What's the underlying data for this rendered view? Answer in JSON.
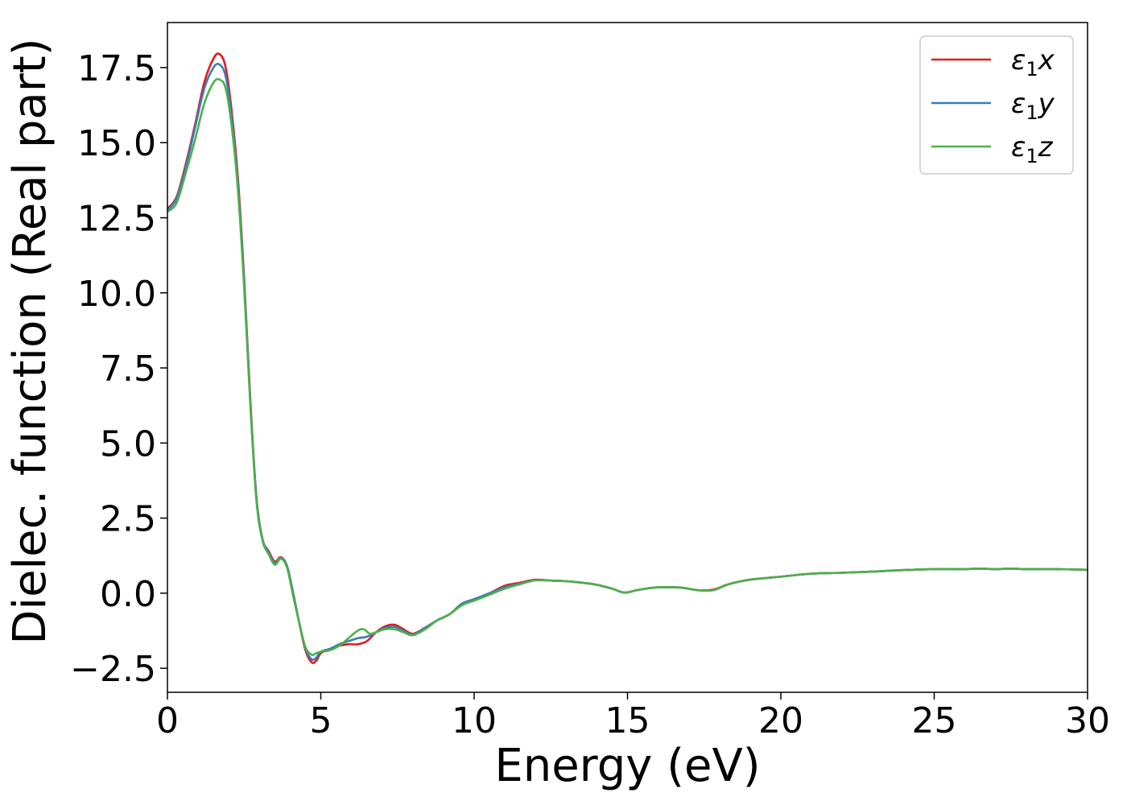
{
  "chart_data": {
    "type": "line",
    "title": "",
    "xlabel": "Energy (eV)",
    "ylabel": "Dielec. function (Real part)",
    "xlim": [
      0,
      30
    ],
    "ylim": [
      -3.3,
      19.0
    ],
    "xticks": [
      0,
      5,
      10,
      15,
      20,
      25,
      30
    ],
    "xtick_labels": [
      "0",
      "5",
      "10",
      "15",
      "20",
      "25",
      "30"
    ],
    "yticks": [
      -2.5,
      0.0,
      2.5,
      5.0,
      7.5,
      10.0,
      12.5,
      15.0,
      17.5
    ],
    "ytick_labels": [
      "−2.5",
      "0.0",
      "2.5",
      "5.0",
      "7.5",
      "10.0",
      "12.5",
      "15.0",
      "17.5"
    ],
    "grid": false,
    "legend_position": "top-right",
    "series": [
      {
        "name": "ε₁x",
        "legend_sub": "1",
        "legend_base": "ε",
        "legend_var": "x",
        "color": "#e41a1c",
        "x": [
          0,
          0.3,
          0.6,
          0.9,
          1.2,
          1.5,
          1.7,
          1.9,
          2.1,
          2.3,
          2.5,
          2.7,
          2.9,
          3.1,
          3.3,
          3.5,
          3.7,
          3.9,
          4.1,
          4.3,
          4.5,
          4.7,
          4.85,
          5.0,
          5.3,
          5.6,
          5.9,
          6.2,
          6.5,
          6.8,
          7.1,
          7.4,
          7.7,
          8.0,
          8.4,
          8.8,
          9.2,
          9.6,
          10.0,
          10.5,
          11.0,
          11.5,
          12.0,
          12.5,
          13.0,
          13.5,
          14.0,
          14.5,
          14.9,
          15.3,
          15.8,
          16.3,
          16.8,
          17.3,
          17.8,
          18.3,
          19.0,
          20.0,
          21.0,
          22.0,
          23.0,
          24.0,
          25.0,
          26.0,
          26.5,
          27.0,
          27.5,
          28.0,
          29.0,
          30.0
        ],
        "y": [
          12.8,
          13.2,
          14.3,
          15.6,
          17.0,
          17.8,
          17.95,
          17.5,
          16.0,
          13.8,
          10.5,
          6.5,
          3.2,
          1.8,
          1.4,
          1.05,
          1.2,
          0.9,
          0.0,
          -1.0,
          -1.9,
          -2.3,
          -2.25,
          -2.0,
          -1.85,
          -1.75,
          -1.7,
          -1.7,
          -1.6,
          -1.3,
          -1.1,
          -1.05,
          -1.2,
          -1.35,
          -1.15,
          -0.9,
          -0.7,
          -0.35,
          -0.2,
          0.0,
          0.25,
          0.35,
          0.45,
          0.42,
          0.4,
          0.35,
          0.28,
          0.15,
          0.02,
          0.1,
          0.18,
          0.2,
          0.18,
          0.1,
          0.12,
          0.3,
          0.45,
          0.55,
          0.65,
          0.68,
          0.72,
          0.77,
          0.8,
          0.8,
          0.82,
          0.8,
          0.82,
          0.8,
          0.8,
          0.78
        ]
      },
      {
        "name": "ε₁y",
        "legend_sub": "1",
        "legend_base": "ε",
        "legend_var": "y",
        "color": "#377eb8",
        "x": [
          0,
          0.3,
          0.6,
          0.9,
          1.2,
          1.5,
          1.7,
          1.9,
          2.1,
          2.3,
          2.5,
          2.7,
          2.9,
          3.1,
          3.3,
          3.5,
          3.7,
          3.9,
          4.1,
          4.3,
          4.5,
          4.7,
          4.85,
          5.0,
          5.3,
          5.6,
          5.9,
          6.2,
          6.5,
          6.8,
          7.1,
          7.4,
          7.7,
          8.0,
          8.4,
          8.8,
          9.2,
          9.6,
          10.0,
          10.5,
          11.0,
          11.5,
          12.0,
          12.5,
          13.0,
          13.5,
          14.0,
          14.5,
          14.9,
          15.3,
          15.8,
          16.3,
          16.8,
          17.3,
          17.8,
          18.3,
          19.0,
          20.0,
          21.0,
          22.0,
          23.0,
          24.0,
          25.0,
          26.0,
          26.5,
          27.0,
          27.5,
          28.0,
          29.0,
          30.0
        ],
        "y": [
          12.75,
          13.15,
          14.2,
          15.5,
          16.8,
          17.5,
          17.6,
          17.2,
          15.8,
          13.6,
          10.4,
          6.4,
          3.2,
          1.8,
          1.35,
          1.0,
          1.18,
          0.9,
          0.0,
          -1.0,
          -1.85,
          -2.2,
          -2.15,
          -1.95,
          -1.85,
          -1.7,
          -1.6,
          -1.5,
          -1.45,
          -1.3,
          -1.15,
          -1.12,
          -1.25,
          -1.38,
          -1.15,
          -0.9,
          -0.7,
          -0.35,
          -0.2,
          0.0,
          0.2,
          0.32,
          0.43,
          0.42,
          0.4,
          0.35,
          0.28,
          0.15,
          0.02,
          0.1,
          0.18,
          0.2,
          0.18,
          0.1,
          0.1,
          0.3,
          0.45,
          0.55,
          0.65,
          0.68,
          0.72,
          0.77,
          0.8,
          0.8,
          0.82,
          0.8,
          0.82,
          0.8,
          0.8,
          0.78
        ]
      },
      {
        "name": "ε₁z",
        "legend_sub": "1",
        "legend_base": "ε",
        "legend_var": "z",
        "color": "#4daf4a",
        "x": [
          0,
          0.3,
          0.6,
          0.9,
          1.2,
          1.5,
          1.7,
          1.9,
          2.1,
          2.3,
          2.5,
          2.7,
          2.9,
          3.1,
          3.3,
          3.5,
          3.7,
          3.9,
          4.1,
          4.3,
          4.5,
          4.7,
          4.85,
          5.0,
          5.3,
          5.6,
          5.9,
          6.2,
          6.4,
          6.6,
          6.8,
          7.1,
          7.4,
          7.7,
          8.0,
          8.4,
          8.8,
          9.2,
          9.6,
          10.0,
          10.5,
          11.0,
          11.5,
          12.0,
          12.5,
          13.0,
          13.5,
          14.0,
          14.5,
          14.9,
          15.3,
          15.8,
          16.3,
          16.8,
          17.3,
          17.8,
          18.3,
          19.0,
          20.0,
          21.0,
          22.0,
          23.0,
          24.0,
          25.0,
          26.0,
          26.5,
          27.0,
          27.5,
          28.0,
          29.0,
          30.0
        ],
        "y": [
          12.7,
          13.0,
          14.0,
          15.1,
          16.3,
          17.0,
          17.1,
          16.8,
          15.5,
          13.4,
          10.2,
          6.3,
          3.1,
          1.75,
          1.3,
          0.95,
          1.15,
          0.85,
          -0.1,
          -1.0,
          -1.8,
          -2.05,
          -2.0,
          -1.95,
          -1.9,
          -1.75,
          -1.5,
          -1.25,
          -1.2,
          -1.35,
          -1.3,
          -1.2,
          -1.2,
          -1.3,
          -1.4,
          -1.2,
          -0.9,
          -0.7,
          -0.4,
          -0.25,
          -0.05,
          0.15,
          0.3,
          0.43,
          0.42,
          0.4,
          0.35,
          0.28,
          0.15,
          0.02,
          0.1,
          0.18,
          0.2,
          0.18,
          0.1,
          0.1,
          0.3,
          0.45,
          0.55,
          0.65,
          0.68,
          0.72,
          0.77,
          0.8,
          0.8,
          0.82,
          0.8,
          0.82,
          0.8,
          0.8,
          0.78
        ]
      }
    ]
  }
}
